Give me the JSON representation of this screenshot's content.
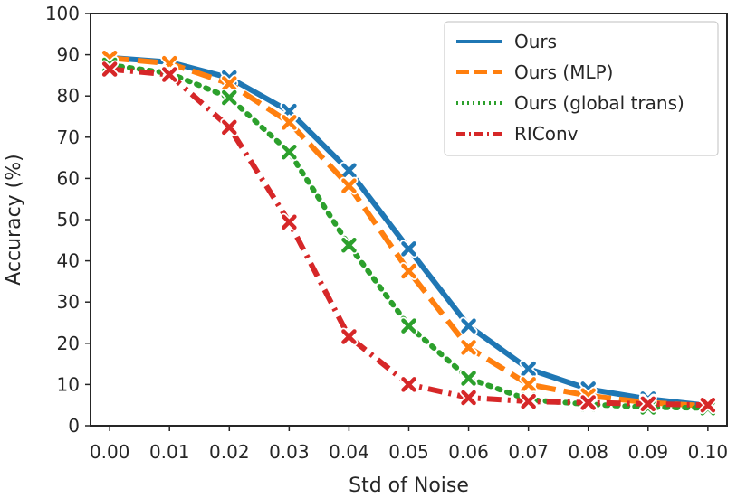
{
  "chart_data": {
    "type": "line",
    "title": "",
    "xlabel": "Std of Noise",
    "ylabel": "Accuracy (%)",
    "x": [
      0.0,
      0.01,
      0.02,
      0.03,
      0.04,
      0.05,
      0.06,
      0.07,
      0.08,
      0.09,
      0.1
    ],
    "x_tick_labels": [
      "0.00",
      "0.01",
      "0.02",
      "0.03",
      "0.04",
      "0.05",
      "0.06",
      "0.07",
      "0.08",
      "0.09",
      "0.10"
    ],
    "y_ticks": [
      0,
      10,
      20,
      30,
      40,
      50,
      60,
      70,
      80,
      90,
      100
    ],
    "y_tick_labels": [
      "0",
      "10",
      "20",
      "30",
      "40",
      "50",
      "60",
      "70",
      "80",
      "90",
      "100"
    ],
    "xlim": [
      -0.0032,
      0.1032
    ],
    "ylim": [
      0,
      100
    ],
    "grid": false,
    "legend_position": "top-right",
    "series": [
      {
        "name": "Ours",
        "color": "#1f77b4",
        "dash": "solid",
        "values": [
          89.3,
          88.2,
          84.4,
          76.3,
          61.9,
          42.9,
          24.2,
          13.8,
          8.9,
          6.5,
          4.9
        ]
      },
      {
        "name": "Ours (MLP)",
        "color": "#ff7f0e",
        "dash": "dashed",
        "values": [
          89.2,
          87.9,
          83.0,
          73.6,
          58.2,
          37.5,
          19.0,
          10.0,
          7.3,
          5.6,
          4.8
        ]
      },
      {
        "name": "Ours (global trans)",
        "color": "#2ca02c",
        "dash": "dotted",
        "values": [
          87.5,
          85.5,
          79.6,
          66.4,
          43.8,
          24.2,
          11.5,
          6.3,
          5.2,
          4.5,
          4.3
        ]
      },
      {
        "name": "RIConv",
        "color": "#d62728",
        "dash": "dashdot",
        "values": [
          86.5,
          85.2,
          72.4,
          49.4,
          21.6,
          10.0,
          6.8,
          5.9,
          5.6,
          5.3,
          5.0
        ]
      }
    ]
  }
}
